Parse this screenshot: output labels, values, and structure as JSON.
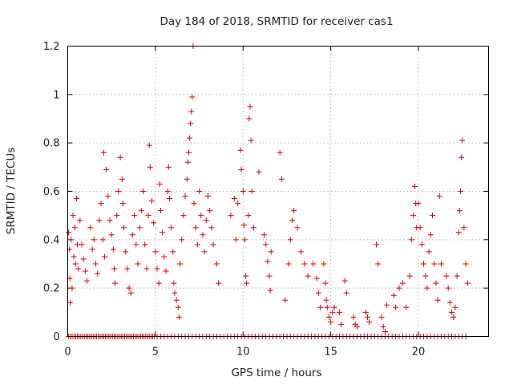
{
  "chart_data": {
    "type": "scatter",
    "title": "Day 184 of 2018, SRMTID for receiver cas1",
    "xlabel": "GPS time / hours",
    "ylabel": "SRMTID / TECUs",
    "xlim": [
      0,
      24
    ],
    "ylim": [
      0,
      1.2
    ],
    "xticks": [
      0,
      5,
      10,
      15,
      20
    ],
    "yticks": [
      0,
      0.2,
      0.4,
      0.6,
      0.8,
      1,
      1.2
    ],
    "xtick_labels": [
      "0",
      "5",
      "10",
      "15",
      "20"
    ],
    "ytick_labels": [
      "0",
      "0.2",
      "0.4",
      "0.6",
      "0.8",
      "1",
      "1.2"
    ],
    "grid": true,
    "marker": "+",
    "color": "#e00000",
    "series": [
      {
        "name": "cas1",
        "points": [
          [
            0.05,
            0.43
          ],
          [
            0.1,
            0.36
          ],
          [
            0.12,
            0.24
          ],
          [
            0.15,
            0.14
          ],
          [
            0.2,
            0.4
          ],
          [
            0.25,
            0.2
          ],
          [
            0.3,
            0.5
          ],
          [
            0.35,
            0.33
          ],
          [
            0.4,
            0.45
          ],
          [
            0.45,
            0.3
          ],
          [
            0.5,
            0.57
          ],
          [
            0.55,
            0.38
          ],
          [
            0.6,
            0.28
          ],
          [
            0.7,
            0.48
          ],
          [
            0.8,
            0.38
          ],
          [
            0.9,
            0.32
          ],
          [
            1.0,
            0.27
          ],
          [
            1.1,
            0.23
          ],
          [
            1.3,
            0.45
          ],
          [
            1.4,
            0.36
          ],
          [
            1.5,
            0.4
          ],
          [
            1.6,
            0.3
          ],
          [
            1.7,
            0.26
          ],
          [
            1.8,
            0.48
          ],
          [
            1.9,
            0.55
          ],
          [
            2.0,
            0.4
          ],
          [
            2.05,
            0.76
          ],
          [
            2.1,
            0.33
          ],
          [
            2.2,
            0.69
          ],
          [
            2.3,
            0.58
          ],
          [
            2.4,
            0.48
          ],
          [
            2.5,
            0.42
          ],
          [
            2.6,
            0.36
          ],
          [
            2.65,
            0.28
          ],
          [
            2.7,
            0.22
          ],
          [
            2.8,
            0.5
          ],
          [
            2.9,
            0.6
          ],
          [
            3.0,
            0.74
          ],
          [
            3.1,
            0.65
          ],
          [
            3.15,
            0.55
          ],
          [
            3.2,
            0.45
          ],
          [
            3.3,
            0.35
          ],
          [
            3.4,
            0.28
          ],
          [
            3.5,
            0.2
          ],
          [
            3.6,
            0.18
          ],
          [
            3.7,
            0.42
          ],
          [
            3.8,
            0.5
          ],
          [
            3.9,
            0.38
          ],
          [
            4.0,
            0.3
          ],
          [
            4.1,
            0.45
          ],
          [
            4.2,
            0.52
          ],
          [
            4.3,
            0.6
          ],
          [
            4.4,
            0.38
          ],
          [
            4.5,
            0.28
          ],
          [
            4.6,
            0.5
          ],
          [
            4.65,
            0.79
          ],
          [
            4.7,
            0.7
          ],
          [
            4.8,
            0.56
          ],
          [
            4.9,
            0.47
          ],
          [
            5.0,
            0.35
          ],
          [
            5.1,
            0.28
          ],
          [
            5.2,
            0.22
          ],
          [
            5.25,
            0.63
          ],
          [
            5.3,
            0.52
          ],
          [
            5.4,
            0.43
          ],
          [
            5.5,
            0.33
          ],
          [
            5.6,
            0.27
          ],
          [
            5.7,
            0.6
          ],
          [
            5.75,
            0.7
          ],
          [
            5.8,
            0.57
          ],
          [
            5.9,
            0.45
          ],
          [
            6.0,
            0.35
          ],
          [
            6.05,
            0.22
          ],
          [
            6.1,
            0.18
          ],
          [
            6.2,
            0.15
          ],
          [
            6.3,
            0.12
          ],
          [
            6.35,
            0.08
          ],
          [
            6.4,
            0.3
          ],
          [
            6.5,
            0.4
          ],
          [
            6.6,
            0.5
          ],
          [
            6.7,
            0.58
          ],
          [
            6.8,
            0.65
          ],
          [
            6.85,
            0.72
          ],
          [
            6.9,
            0.76
          ],
          [
            6.95,
            0.82
          ],
          [
            7.0,
            0.88
          ],
          [
            7.05,
            0.93
          ],
          [
            7.1,
            0.99
          ],
          [
            7.15,
            1.2
          ],
          [
            7.2,
            0.55
          ],
          [
            7.3,
            0.45
          ],
          [
            7.4,
            0.38
          ],
          [
            7.5,
            0.6
          ],
          [
            7.6,
            0.5
          ],
          [
            7.7,
            0.42
          ],
          [
            7.8,
            0.35
          ],
          [
            7.9,
            0.48
          ],
          [
            8.0,
            0.58
          ],
          [
            8.1,
            0.52
          ],
          [
            8.2,
            0.45
          ],
          [
            8.3,
            0.38
          ],
          [
            8.5,
            0.3
          ],
          [
            8.6,
            0.22
          ],
          [
            9.3,
            0.5
          ],
          [
            9.5,
            0.57
          ],
          [
            9.6,
            0.4
          ],
          [
            9.7,
            0.55
          ],
          [
            9.85,
            0.77
          ],
          [
            9.9,
            0.69
          ],
          [
            10.0,
            0.6
          ],
          [
            10.05,
            0.46
          ],
          [
            10.1,
            0.4
          ],
          [
            10.15,
            0.25
          ],
          [
            10.2,
            0.22
          ],
          [
            10.3,
            0.5
          ],
          [
            10.35,
            0.9
          ],
          [
            10.4,
            0.95
          ],
          [
            10.45,
            0.81
          ],
          [
            10.5,
            0.6
          ],
          [
            10.6,
            0.45
          ],
          [
            10.9,
            0.68
          ],
          [
            11.2,
            0.42
          ],
          [
            11.3,
            0.38
          ],
          [
            11.4,
            0.31
          ],
          [
            11.5,
            0.25
          ],
          [
            11.55,
            0.19
          ],
          [
            11.6,
            0.35
          ],
          [
            12.1,
            0.76
          ],
          [
            12.2,
            0.65
          ],
          [
            12.4,
            0.15
          ],
          [
            12.6,
            0.3
          ],
          [
            12.7,
            0.4
          ],
          [
            12.8,
            0.48
          ],
          [
            12.9,
            0.52
          ],
          [
            13.1,
            0.45
          ],
          [
            13.3,
            0.35
          ],
          [
            13.5,
            0.3
          ],
          [
            13.7,
            0.25
          ],
          [
            14.0,
            0.3
          ],
          [
            14.2,
            0.24
          ],
          [
            14.3,
            0.18
          ],
          [
            14.4,
            0.12
          ],
          [
            14.6,
            0.3
          ],
          [
            14.7,
            0.22
          ],
          [
            14.75,
            0.15
          ],
          [
            14.8,
            0.12
          ],
          [
            14.9,
            0.08
          ],
          [
            15.0,
            0.06
          ],
          [
            15.1,
            0.1
          ],
          [
            15.2,
            0.12
          ],
          [
            15.5,
            0.1
          ],
          [
            15.6,
            0.05
          ],
          [
            15.8,
            0.23
          ],
          [
            15.9,
            0.18
          ],
          [
            16.3,
            0.08
          ],
          [
            16.4,
            0.05
          ],
          [
            16.5,
            0.04
          ],
          [
            17.0,
            0.1
          ],
          [
            17.1,
            0.08
          ],
          [
            17.2,
            0.06
          ],
          [
            17.6,
            0.38
          ],
          [
            17.7,
            0.3
          ],
          [
            17.9,
            0.08
          ],
          [
            18.0,
            0.04
          ],
          [
            18.1,
            0.02
          ],
          [
            18.2,
            0.13
          ],
          [
            18.6,
            0.17
          ],
          [
            18.7,
            0.12
          ],
          [
            18.9,
            0.2
          ],
          [
            19.1,
            0.22
          ],
          [
            19.3,
            0.12
          ],
          [
            19.5,
            0.25
          ],
          [
            19.6,
            0.4
          ],
          [
            19.7,
            0.5
          ],
          [
            19.8,
            0.62
          ],
          [
            19.85,
            0.55
          ],
          [
            19.9,
            0.45
          ],
          [
            20.0,
            0.55
          ],
          [
            20.1,
            0.45
          ],
          [
            20.2,
            0.38
          ],
          [
            20.3,
            0.3
          ],
          [
            20.4,
            0.25
          ],
          [
            20.5,
            0.2
          ],
          [
            20.6,
            0.35
          ],
          [
            20.7,
            0.42
          ],
          [
            20.8,
            0.5
          ],
          [
            20.9,
            0.3
          ],
          [
            21.0,
            0.22
          ],
          [
            21.1,
            0.15
          ],
          [
            21.2,
            0.58
          ],
          [
            21.3,
            0.3
          ],
          [
            21.6,
            0.25
          ],
          [
            21.7,
            0.2
          ],
          [
            21.8,
            0.14
          ],
          [
            21.9,
            0.1
          ],
          [
            22.0,
            0.08
          ],
          [
            22.1,
            0.12
          ],
          [
            22.2,
            0.25
          ],
          [
            22.3,
            0.43
          ],
          [
            22.35,
            0.52
          ],
          [
            22.4,
            0.6
          ],
          [
            22.45,
            0.74
          ],
          [
            22.5,
            0.81
          ],
          [
            22.6,
            0.45
          ],
          [
            22.7,
            0.3
          ],
          [
            22.8,
            0.22
          ]
        ],
        "zero_points_x": [
          0.05,
          0.15,
          0.25,
          0.35,
          0.45,
          0.55,
          0.65,
          0.75,
          0.85,
          0.95,
          1.05,
          1.15,
          1.25,
          1.35,
          1.45,
          1.55,
          1.65,
          1.75,
          1.85,
          1.95,
          2.05,
          2.15,
          2.25,
          2.35,
          2.45,
          2.55,
          2.65,
          2.75,
          2.85,
          2.95,
          3.05,
          3.15,
          3.25,
          3.35,
          3.45,
          3.55,
          3.65,
          3.75,
          3.85,
          3.95,
          4.05,
          4.15,
          4.25,
          4.35,
          4.45,
          4.55,
          4.65,
          4.75,
          4.85,
          4.95,
          5.1,
          5.3,
          5.5,
          5.7,
          5.9,
          6.1,
          6.3,
          6.5,
          6.7,
          6.9,
          7.1,
          7.3,
          7.5,
          7.7,
          7.9,
          8.1,
          8.3,
          8.5,
          8.7,
          8.9,
          9.1,
          9.3,
          9.5,
          9.7,
          9.9,
          10.1,
          10.3,
          10.5,
          10.7,
          10.9,
          11.1,
          11.3,
          11.5,
          11.7,
          11.9,
          12.1,
          12.3,
          12.5,
          12.7,
          12.9,
          13.1,
          13.3,
          13.5,
          13.7,
          13.9,
          14.1,
          14.3,
          14.5,
          14.7,
          14.9,
          15.1,
          15.3,
          15.5,
          15.7,
          15.9,
          16.1,
          16.3,
          16.5,
          16.7,
          16.9,
          17.1,
          17.3,
          17.5,
          17.7,
          17.9,
          18.1,
          18.3,
          18.5,
          18.7,
          18.9,
          19.1,
          19.3,
          19.5,
          19.7,
          19.9,
          20.1,
          20.3,
          20.5,
          20.7,
          20.9,
          21.1,
          21.3,
          21.5,
          21.7,
          21.9,
          22.1,
          22.3,
          22.5,
          22.7
        ]
      }
    ]
  }
}
